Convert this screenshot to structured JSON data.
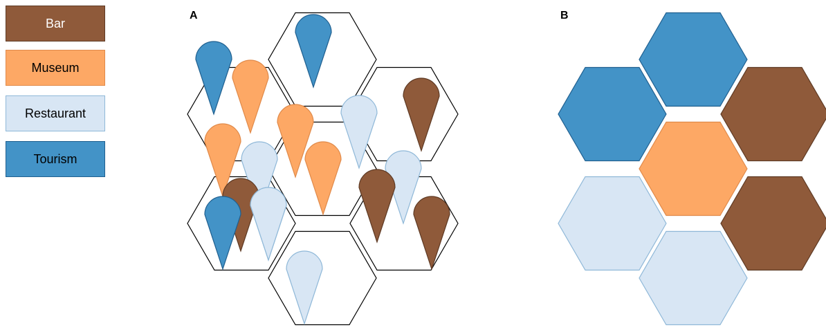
{
  "legend": [
    {
      "key": "bar",
      "label": "Bar",
      "fill": "#8f5a3a",
      "border": "#5e3a24",
      "text_color": "#ffffff"
    },
    {
      "key": "museum",
      "label": "Museum",
      "fill": "#fda865",
      "border": "#e08a4a",
      "text_color": "#000000"
    },
    {
      "key": "restaurant",
      "label": "Restaurant",
      "fill": "#d8e6f4",
      "border": "#8fb8d8",
      "text_color": "#000000"
    },
    {
      "key": "tourism",
      "label": "Tourism",
      "fill": "#4393c7",
      "border": "#1f5f8f",
      "text_color": "#000000"
    }
  ],
  "panels": {
    "a": {
      "label": "A"
    },
    "b": {
      "label": "B"
    }
  },
  "panel_a_pins": [
    {
      "category": "tourism"
    },
    {
      "category": "museum"
    },
    {
      "category": "tourism"
    },
    {
      "category": "bar"
    },
    {
      "category": "museum"
    },
    {
      "category": "restaurant"
    },
    {
      "category": "museum"
    },
    {
      "category": "restaurant"
    },
    {
      "category": "museum"
    },
    {
      "category": "bar"
    },
    {
      "category": "restaurant"
    },
    {
      "category": "tourism"
    },
    {
      "category": "restaurant"
    },
    {
      "category": "bar"
    },
    {
      "category": "restaurant"
    },
    {
      "category": "bar"
    },
    {
      "category": "restaurant"
    }
  ],
  "panel_b_cells": [
    {
      "cell": "top",
      "category": "tourism"
    },
    {
      "cell": "upper-left",
      "category": "tourism"
    },
    {
      "cell": "upper-right",
      "category": "bar"
    },
    {
      "cell": "center",
      "category": "museum"
    },
    {
      "cell": "lower-left",
      "category": "restaurant"
    },
    {
      "cell": "lower-right",
      "category": "bar"
    },
    {
      "cell": "bottom",
      "category": "restaurant"
    }
  ]
}
